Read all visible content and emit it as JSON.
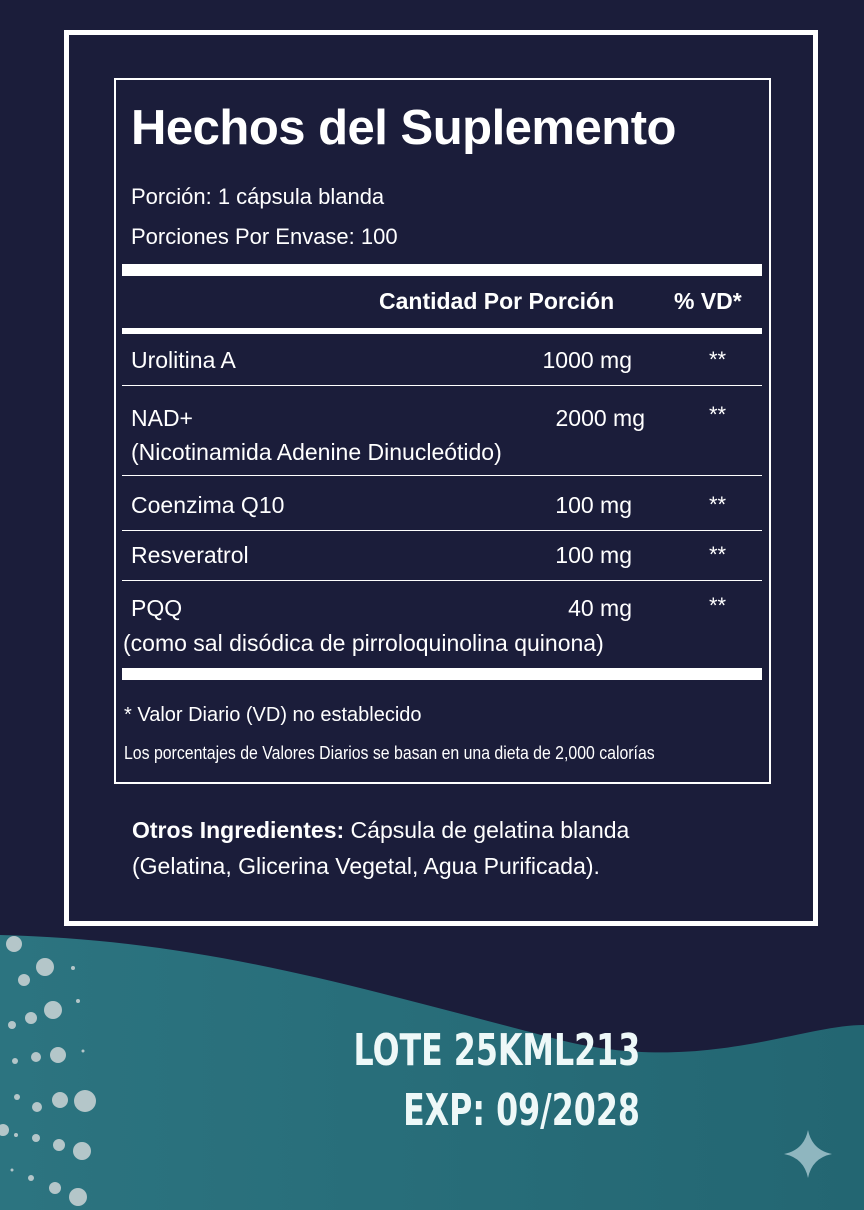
{
  "title": "Hechos del Suplemento",
  "serving_size": "Porción: 1 cápsula blanda",
  "servings_per_container": "Porciones Por Envase: 100",
  "table": {
    "header_amount": "Cantidad Por Porción",
    "header_dv": "% VD*",
    "rows": [
      {
        "name": "Urolitina A",
        "amount": "1000 mg",
        "dv": "**"
      },
      {
        "name": "NAD+",
        "detail": "(Nicotinamida Adenine Dinucleótido)",
        "amount": "2000 mg",
        "dv": "**"
      },
      {
        "name": "Coenzima Q10",
        "amount": "100 mg",
        "dv": "**"
      },
      {
        "name": "Resveratrol",
        "amount": "100 mg",
        "dv": "**"
      },
      {
        "name": "PQQ",
        "detail": "(como sal disódica de pirroloquinolina quinona)",
        "amount": "40 mg",
        "dv": "**"
      }
    ]
  },
  "footnote_1": "* Valor Diario (VD) no establecido",
  "footnote_2": "Los porcentajes de Valores Diarios se basan en una dieta de 2,000 calorías",
  "other_ingredients_label": "Otros Ingredientes:",
  "other_ingredients_line1": " Cápsula de gelatina blanda",
  "other_ingredients_line2": "(Gelatina, Glicerina Vegetal, Agua Purificada).",
  "lot": "LOTE 25KML213",
  "expiry": "EXP: 09/2028",
  "colors": {
    "navy": "#1b1d3a",
    "teal": "#2a6e79",
    "dots": "#b4c6c9",
    "sparkle": "#8fb6bf"
  }
}
